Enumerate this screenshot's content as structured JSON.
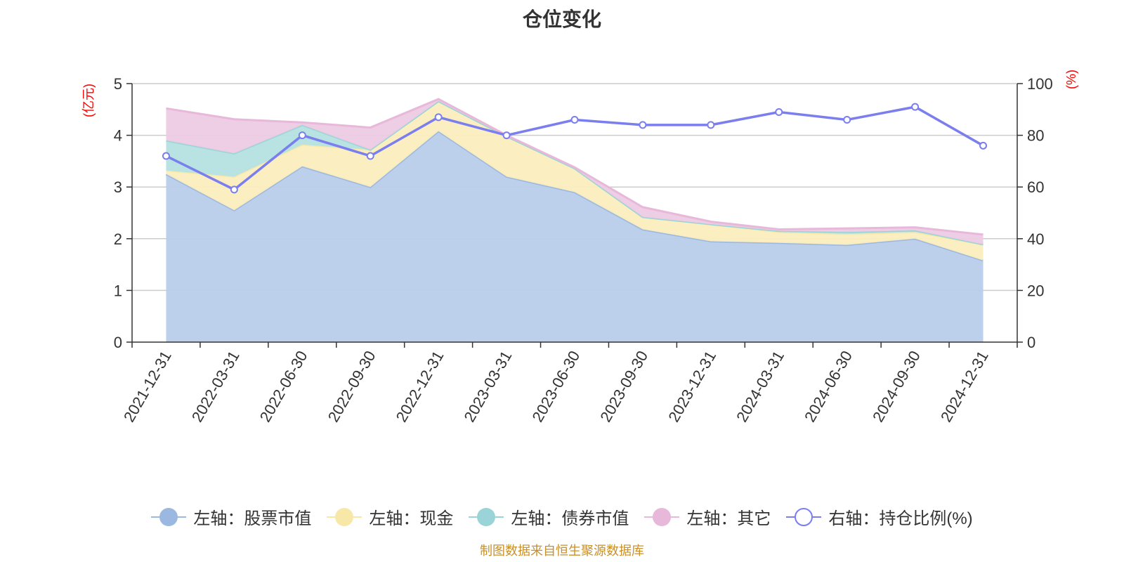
{
  "chart_data": {
    "type": "area",
    "title": "仓位变化",
    "categories": [
      "2021-12-31",
      "2022-03-31",
      "2022-06-30",
      "2022-09-30",
      "2022-12-31",
      "2023-03-31",
      "2023-06-30",
      "2023-09-30",
      "2023-12-31",
      "2024-03-31",
      "2024-06-30",
      "2024-09-30",
      "2024-12-31"
    ],
    "left_axis": {
      "unit": "(亿元)",
      "ylim": [
        0,
        5
      ],
      "ticks": [
        0,
        1,
        2,
        3,
        4,
        5
      ]
    },
    "right_axis": {
      "unit": "(%)",
      "ylim": [
        0,
        100
      ],
      "ticks": [
        0,
        20,
        40,
        60,
        80,
        100
      ]
    },
    "series": [
      {
        "name": "左轴：股票市值",
        "axis": "left",
        "kind": "stacked-area",
        "color": "#9bb8e0",
        "fill": "#b8cdea",
        "values": [
          3.25,
          2.55,
          3.4,
          3.0,
          4.08,
          3.2,
          2.9,
          2.18,
          1.95,
          1.92,
          1.88,
          2.0,
          1.58
        ]
      },
      {
        "name": "左轴：现金",
        "axis": "left",
        "kind": "stacked-area",
        "color": "#f8e8a8",
        "fill": "#fbedbe",
        "values": [
          0.07,
          0.65,
          0.42,
          0.72,
          0.58,
          0.78,
          0.46,
          0.24,
          0.33,
          0.21,
          0.21,
          0.13,
          0.31
        ]
      },
      {
        "name": "左轴：债券市值",
        "axis": "left",
        "kind": "stacked-area",
        "color": "#9ad4d8",
        "fill": "#b5e1e2",
        "values": [
          0.58,
          0.45,
          0.38,
          0.0,
          0.0,
          0.0,
          0.0,
          0.0,
          0.0,
          0.02,
          0.04,
          0.03,
          0.0
        ]
      },
      {
        "name": "左轴：其它",
        "axis": "left",
        "kind": "stacked-area",
        "color": "#e8b8da",
        "fill": "#edcbe3",
        "values": [
          0.62,
          0.66,
          0.05,
          0.43,
          0.04,
          0.02,
          0.02,
          0.19,
          0.05,
          0.03,
          0.07,
          0.06,
          0.19
        ]
      },
      {
        "name": "右轴：持仓比例(%)",
        "axis": "right",
        "kind": "line",
        "color": "#7a7eee",
        "values": [
          72,
          59,
          80,
          72,
          87,
          80,
          86,
          84,
          84,
          89,
          86,
          91,
          76
        ]
      }
    ],
    "legend_position": "bottom",
    "grid": true
  },
  "source_note": "制图数据来自恒生聚源数据库"
}
